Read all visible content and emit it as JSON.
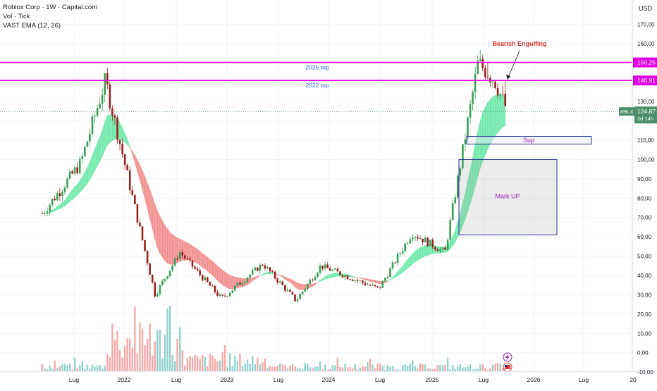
{
  "legend": {
    "line1": "Roblox Corp · 1W · Capital.com",
    "line2": "Vol · Tick",
    "line3": "VAST EMA (12, 26)"
  },
  "currency": "USD",
  "colors": {
    "up": "#26a69a",
    "down": "#ef5350",
    "candle_up": "#3b9e58",
    "candle_down": "#9b1f1f",
    "cloud_up": "#5ce6a0",
    "cloud_down": "#f08080",
    "resistance": "#e100e1",
    "annotation_text": "#2962ff",
    "box_border": "#283593",
    "label_purple": "#9c27b0",
    "price_badge": "#4a8e6a",
    "engulfing_text": "#d32f2f"
  },
  "levels": [
    {
      "name": "2025 top",
      "value": 150.25,
      "label": "150,25"
    },
    {
      "name": "2022 top",
      "value": 140.91,
      "label": "140,91"
    }
  ],
  "current_price": {
    "ticker": "RBLX",
    "value": 124.87,
    "label": "124,87",
    "countdown": "2d 14h"
  },
  "annotations": {
    "bearish_engulfing": "Bearish Engulfing",
    "sup": "Sup",
    "mark_up": "Mark UP"
  },
  "icons": [
    "lightning-icon",
    "us-flag-icon"
  ],
  "chart_data": {
    "type": "candlestick",
    "interval": "1W",
    "y_ticks": [
      "170,00",
      "160,00",
      "150,00",
      "140,00",
      "130,00",
      "120,00",
      "110,00",
      "100,00",
      "90,00",
      "80,00",
      "70,00",
      "60,00",
      "50,00",
      "40,00",
      "30,00",
      "20,00",
      "10,00",
      "0,00",
      "-10,00"
    ],
    "x_ticks": [
      "Lug",
      "2022",
      "Lug",
      "2023",
      "Lug",
      "2024",
      "Lug",
      "2025",
      "Lug",
      "2026",
      "Lug",
      "20"
    ],
    "ylim": [
      -10,
      175
    ],
    "key_points": [
      {
        "date": "2021-03",
        "price": 72
      },
      {
        "date": "2021-08",
        "price": 98
      },
      {
        "date": "2021-11",
        "price": 140.91
      },
      {
        "date": "2022-05",
        "price": 30
      },
      {
        "date": "2022-08",
        "price": 52
      },
      {
        "date": "2023-01",
        "price": 28
      },
      {
        "date": "2023-06",
        "price": 46
      },
      {
        "date": "2023-10",
        "price": 27
      },
      {
        "date": "2024-01",
        "price": 45
      },
      {
        "date": "2024-08",
        "price": 33
      },
      {
        "date": "2024-12",
        "price": 62
      },
      {
        "date": "2025-04",
        "price": 52
      },
      {
        "date": "2025-08",
        "price": 150.25
      },
      {
        "date": "2025-10",
        "price": 140.91
      },
      {
        "date": "2025-11",
        "price": 124.87
      }
    ],
    "boxes": [
      {
        "label": "Sup",
        "price_low": 108,
        "price_high": 112
      },
      {
        "label": "Mark UP",
        "price_low": 61,
        "price_high": 100
      }
    ]
  }
}
